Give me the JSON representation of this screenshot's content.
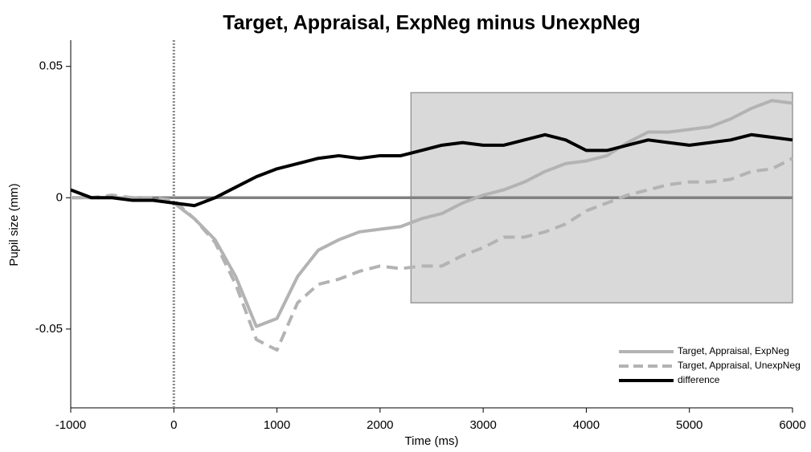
{
  "chart_data": {
    "type": "line",
    "title": "Target, Appraisal, ExpNeg minus UnexpNeg",
    "x_label": "Time (ms)",
    "y_label": "Pupil size (mm)",
    "x": [
      -1000,
      -800,
      -600,
      -400,
      -200,
      0,
      200,
      400,
      600,
      800,
      1000,
      1200,
      1400,
      1600,
      1800,
      2000,
      2200,
      2400,
      2600,
      2800,
      3000,
      3200,
      3400,
      3600,
      3800,
      4000,
      4200,
      4400,
      4600,
      4800,
      5000,
      5200,
      5400,
      5600,
      5800,
      6000
    ],
    "series": [
      {
        "name": "Target, Appraisal, ExpNeg",
        "color": "#b3b3b3",
        "style": "solid",
        "values": [
          0,
          0,
          0,
          0,
          -0.001,
          -0.002,
          -0.008,
          -0.016,
          -0.03,
          -0.049,
          -0.046,
          -0.03,
          -0.02,
          -0.016,
          -0.013,
          -0.012,
          -0.011,
          -0.008,
          -0.006,
          -0.002,
          0.001,
          0.003,
          0.006,
          0.01,
          0.013,
          0.014,
          0.016,
          0.021,
          0.025,
          0.025,
          0.026,
          0.027,
          0.03,
          0.034,
          0.037,
          0.036
        ]
      },
      {
        "name": "Target, Appraisal, UnexpNeg",
        "color": "#b3b3b3",
        "style": "dashed",
        "values": [
          0,
          0,
          0.001,
          0,
          0,
          -0.001,
          -0.008,
          -0.017,
          -0.033,
          -0.054,
          -0.058,
          -0.04,
          -0.033,
          -0.031,
          -0.028,
          -0.026,
          -0.027,
          -0.026,
          -0.026,
          -0.022,
          -0.019,
          -0.015,
          -0.015,
          -0.013,
          -0.01,
          -0.005,
          -0.002,
          0.001,
          0.003,
          0.005,
          0.006,
          0.006,
          0.007,
          0.01,
          0.011,
          0.015
        ]
      },
      {
        "name": "difference",
        "color": "#000000",
        "style": "solid",
        "values": [
          0.003,
          0,
          0,
          -0.001,
          -0.001,
          -0.002,
          -0.003,
          0,
          0.004,
          0.008,
          0.011,
          0.013,
          0.015,
          0.016,
          0.015,
          0.016,
          0.016,
          0.018,
          0.02,
          0.021,
          0.02,
          0.02,
          0.022,
          0.024,
          0.022,
          0.018,
          0.018,
          0.02,
          0.022,
          0.021,
          0.02,
          0.021,
          0.022,
          0.024,
          0.023,
          0.022
        ]
      }
    ],
    "xlim": [
      -1000,
      6000
    ],
    "xticks": [
      -1000,
      0,
      1000,
      2000,
      3000,
      4000,
      5000,
      6000
    ],
    "ylim": [
      -0.08,
      0.06
    ],
    "yticks": [
      -0.05,
      0,
      0.05
    ],
    "shaded_region": {
      "x": [
        2300,
        6000
      ],
      "y": [
        -0.04,
        0.04
      ],
      "color": "#d9d9d9"
    },
    "vline": 0,
    "hline": 0,
    "hline_color": "#808080",
    "legend": "lower right"
  }
}
